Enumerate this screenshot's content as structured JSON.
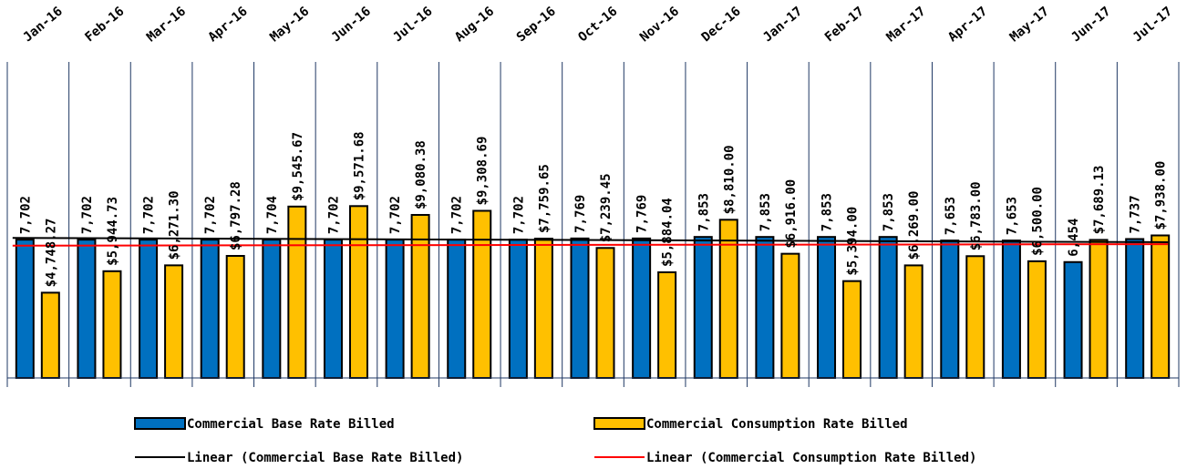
{
  "chart_data": {
    "type": "bar",
    "categories": [
      "Jan-16",
      "Feb-16",
      "Mar-16",
      "Apr-16",
      "May-16",
      "Jun-16",
      "Jul-16",
      "Aug-16",
      "Sep-16",
      "Oct-16",
      "Nov-16",
      "Dec-16",
      "Jan-17",
      "Feb-17",
      "Mar-17",
      "Apr-17",
      "May-17",
      "Jun-17",
      "Jul-17"
    ],
    "series": [
      {
        "name": "Commercial Base Rate Billed",
        "color": "#0070C0",
        "values": [
          7702,
          7702,
          7702,
          7702,
          7704,
          7702,
          7702,
          7702,
          7702,
          7769,
          7769,
          7853,
          7853,
          7853,
          7853,
          7653,
          7653,
          6454,
          7737
        ],
        "labels": [
          "7,702",
          "7,702",
          "7,702",
          "7,702",
          "7,704",
          "7,702",
          "7,702",
          "7,702",
          "7,702",
          "7,769",
          "7,769",
          "7,853",
          "7,853",
          "7,853",
          "7,853",
          "7,653",
          "7,653",
          "6,454",
          "7,737"
        ]
      },
      {
        "name": "Commercial Consumption Rate Billed",
        "color": "#FFC000",
        "values": [
          4748.27,
          5944.73,
          6271.3,
          6797.28,
          9545.67,
          9571.68,
          9080.38,
          9308.69,
          7759.65,
          7239.45,
          5884.04,
          8810.0,
          6916.0,
          5394.0,
          6269.0,
          6783.0,
          6500.0,
          7689.13,
          7938.0
        ],
        "labels": [
          "$4,748.27",
          "$5,944.73",
          "$6,271.30",
          "$6,797.28",
          "$9,545.67",
          "$9,571.68",
          "$9,080.38",
          "$9,308.69",
          "$7,759.65",
          "$7,239.45",
          "$5,884.04",
          "$8,810.00",
          "$6,916.00",
          "$5,394.00",
          "$6,269.00",
          "$6,783.00",
          "$6,500.00",
          "$7,689.13",
          "$7,938.00"
        ]
      }
    ],
    "trendlines": [
      {
        "name": "Linear (Commercial Base Rate Billed)",
        "color": "#000000",
        "start": 7800,
        "end": 7560
      },
      {
        "name": "Linear (Commercial Consumption Rate Billed)",
        "color": "#FF0000",
        "start": 7370,
        "end": 7450
      }
    ],
    "ylim": [
      0,
      17500
    ],
    "legend_position": "bottom",
    "grid": false,
    "category_separators": true
  }
}
